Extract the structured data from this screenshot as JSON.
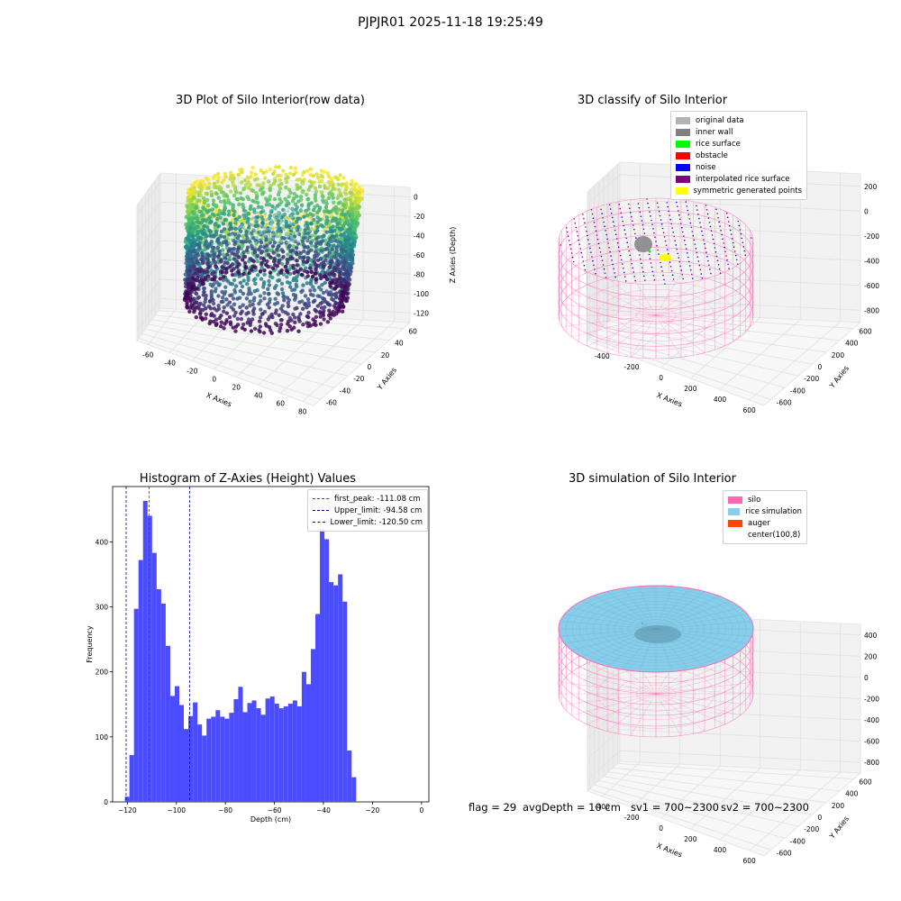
{
  "suptitle": "PJPJR01 2025-11-18 19:25:49",
  "status": {
    "flag": "flag = 29",
    "avg": "avgDepth = 10 cm",
    "sv1": "sv1 = 700~2300",
    "sv2": "sv2 = 700~2300"
  },
  "chart_data": [
    {
      "type": "scatter",
      "title": "3D Plot of Silo Interior(row data)",
      "xlabel": "X Axies",
      "ylabel": "Y Axies",
      "zlabel": "Z Axies (Depth)",
      "xticks": [
        "-60",
        "-40",
        "-20",
        "0",
        "20",
        "40",
        "60",
        "80"
      ],
      "yticks": [
        "-60",
        "-40",
        "-20",
        "0",
        "20",
        "40",
        "60"
      ],
      "zticks": [
        "0",
        "-20",
        "-40",
        "-60",
        "-80",
        "-100",
        "-120"
      ],
      "xlim": [
        -65,
        85
      ],
      "ylim": [
        -65,
        65
      ],
      "zlim": [
        -130,
        5
      ],
      "colormap": "viridis"
    },
    {
      "type": "scatter",
      "title": "3D classify of Silo Interior",
      "xlabel": "X Axies",
      "ylabel": "Y Axies",
      "zlabel": "Z Axies (Depth)",
      "xticks": [
        "-400",
        "-200",
        "0",
        "200",
        "400",
        "600"
      ],
      "yticks": [
        "-600",
        "-400",
        "-200",
        "0",
        "200",
        "400",
        "600"
      ],
      "zticks": [
        "200",
        "0",
        "-200",
        "-400",
        "-600",
        "-800"
      ],
      "legend": [
        {
          "label": "original data",
          "color": "#b3b3b3"
        },
        {
          "label": "inner wall",
          "color": "#808080"
        },
        {
          "label": "rice surface",
          "color": "#00ff00"
        },
        {
          "label": "obstacle",
          "color": "#ff0000"
        },
        {
          "label": "noise",
          "color": "#0000ff"
        },
        {
          "label": "interpolated rice surface",
          "color": "#800080"
        },
        {
          "label": "symmetric generated points",
          "color": "#ffff00"
        }
      ]
    },
    {
      "type": "bar",
      "title": "Histogram of Z-Axies (Height) Values",
      "xlabel": "Depth (cm)",
      "ylabel": "Frequency",
      "xlim": [
        -126,
        3
      ],
      "ylim": [
        0,
        485
      ],
      "xticks": [
        -120,
        -100,
        -80,
        -60,
        -40,
        -20,
        0
      ],
      "yticks": [
        0,
        100,
        200,
        300,
        400
      ],
      "bin_start": -121,
      "bin_width": 1.85,
      "values": [
        8,
        72,
        297,
        372,
        463,
        440,
        383,
        327,
        305,
        240,
        163,
        178,
        149,
        112,
        132,
        153,
        119,
        102,
        128,
        131,
        141,
        131,
        128,
        137,
        158,
        177,
        138,
        152,
        156,
        144,
        134,
        159,
        162,
        151,
        144,
        147,
        151,
        156,
        147,
        200,
        181,
        235,
        289,
        420,
        404,
        338,
        333,
        350,
        308,
        79,
        38
      ],
      "bar_color": "#4b4bff",
      "lines": [
        {
          "label": "first_peak: -111.08 cm",
          "x": -111.08,
          "color": "#ff0000"
        },
        {
          "label": "Upper_limit: -94.58 cm",
          "x": -94.58,
          "color": "#0000b0"
        },
        {
          "label": "Lower_limit: -120.50 cm",
          "x": -120.5,
          "color": "#0000b0"
        }
      ]
    },
    {
      "type": "scatter",
      "title": "3D simulation of Silo Interior",
      "xlabel": "X Axies",
      "ylabel": "Y Axies",
      "zlabel": "Z Axies (Depth)",
      "xticks": [
        "-400",
        "-200",
        "0",
        "200",
        "400",
        "600"
      ],
      "yticks": [
        "-600",
        "-400",
        "-200",
        "0",
        "200",
        "400",
        "600"
      ],
      "zticks": [
        "400",
        "200",
        "0",
        "-200",
        "-400",
        "-600",
        "-800"
      ],
      "legend": [
        {
          "label": "silo",
          "color": "#ff69b4"
        },
        {
          "label": "rice simulation",
          "color": "#87ceeb"
        },
        {
          "label": "auger",
          "color": "#ff4500"
        },
        {
          "label": "center(100,8)",
          "color": "transparent"
        }
      ]
    }
  ]
}
